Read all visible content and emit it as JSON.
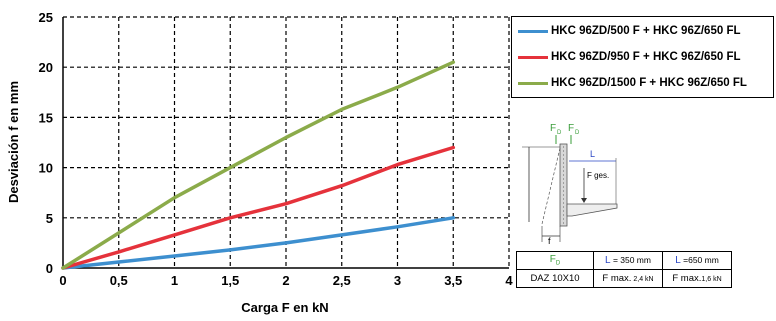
{
  "chart_data": {
    "type": "line",
    "xlabel": "Carga F en kN",
    "ylabel": "Desviación f en mm",
    "xlim": [
      0,
      4
    ],
    "ylim": [
      0,
      25
    ],
    "x_ticks": [
      "0",
      "0,5",
      "1",
      "1,5",
      "2",
      "2,5",
      "3",
      "3,5",
      "4"
    ],
    "y_ticks": [
      "0",
      "5",
      "10",
      "15",
      "20",
      "25"
    ],
    "grid": "dashed",
    "legend_position": "right",
    "series": [
      {
        "name": "HKC 96ZD/500 F + HKC 96Z/650 FL",
        "color": "#3d8fcf",
        "x": [
          0,
          0.5,
          1,
          1.5,
          2,
          2.5,
          3,
          3.5
        ],
        "y": [
          0,
          0.6,
          1.2,
          1.8,
          2.5,
          3.3,
          4.1,
          5.0
        ]
      },
      {
        "name": "HKC 96ZD/950 F + HKC 96Z/650 FL",
        "color": "#e5323b",
        "x": [
          0,
          0.5,
          1,
          1.5,
          2,
          2.5,
          3,
          3.5
        ],
        "y": [
          0,
          1.6,
          3.3,
          5.0,
          6.4,
          8.2,
          10.3,
          12.0
        ]
      },
      {
        "name": "HKC 96ZD/1500 F + HKC 96Z/650 FL",
        "color": "#8bab4a",
        "x": [
          0,
          0.5,
          1,
          1.5,
          2,
          2.5,
          3,
          3.5
        ],
        "y": [
          0,
          3.5,
          7.0,
          10.0,
          13.0,
          15.8,
          18.0,
          20.5
        ]
      }
    ]
  },
  "diagram": {
    "fd_label": "F",
    "fd_sub": "D",
    "l_label": "L",
    "fges_label": "F ges.",
    "f_label": "f"
  },
  "table": {
    "r1c1_main": "F",
    "r1c1_sub": "D",
    "r1c2_l": "L",
    "r1c2_rest": " = 350 mm",
    "r1c3_l": "L",
    "r1c3_rest": " =650 mm",
    "r2c1": "DAZ 10X10",
    "r2c2_main": "F max.",
    "r2c2_small": " 2,4 kN",
    "r2c3_main": "F max.",
    "r2c3_small": "1,6 kN"
  },
  "colors": {
    "fd_green": "#3a9d3a",
    "l_blue": "#2a46c4"
  }
}
